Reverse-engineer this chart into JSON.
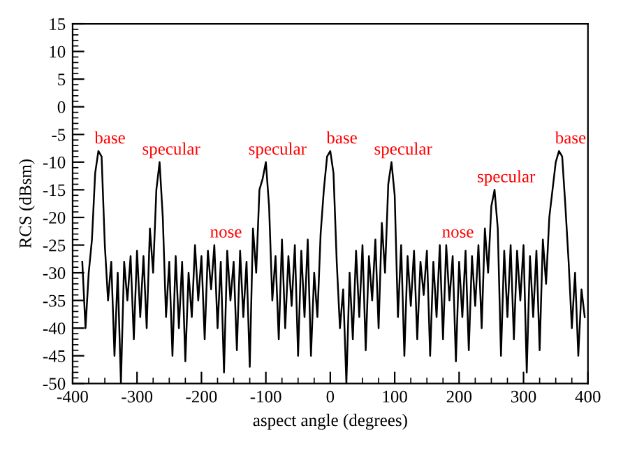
{
  "chart_data": {
    "type": "line",
    "xlabel": "aspect angle (degrees)",
    "ylabel": "RCS (dBsm)",
    "xlim": [
      -400,
      400
    ],
    "xticks": [
      -400,
      -300,
      -200,
      -100,
      0,
      100,
      200,
      300,
      400
    ],
    "ylim": [
      -50,
      15
    ],
    "yticks": [
      -50,
      -45,
      -40,
      -35,
      -30,
      -25,
      -20,
      -15,
      -10,
      -5,
      0,
      5,
      10,
      15
    ],
    "grid": false,
    "legend": false,
    "marker": "none",
    "line_style": "solid",
    "annotations": [
      {
        "text": "base",
        "x": -360,
        "y": -8
      },
      {
        "text": "specular",
        "x": -265,
        "y": -10
      },
      {
        "text": "nose",
        "x": -180,
        "y": -25
      },
      {
        "text": "specular",
        "x": -100,
        "y": -10
      },
      {
        "text": "base",
        "x": 0,
        "y": -8
      },
      {
        "text": "specular",
        "x": 95,
        "y": -10
      },
      {
        "text": "nose",
        "x": 180,
        "y": -25
      },
      {
        "text": "specular",
        "x": 255,
        "y": -15
      },
      {
        "text": "base",
        "x": 355,
        "y": -8
      }
    ],
    "series": [
      {
        "color": "#000000",
        "x": [
          -385,
          -380,
          -375,
          -370,
          -365,
          -360,
          -355,
          -350,
          -345,
          -340,
          -335,
          -330,
          -325,
          -320,
          -315,
          -310,
          -305,
          -300,
          -295,
          -290,
          -285,
          -280,
          -275,
          -270,
          -265,
          -260,
          -255,
          -250,
          -245,
          -240,
          -235,
          -230,
          -225,
          -220,
          -215,
          -210,
          -205,
          -200,
          -195,
          -190,
          -185,
          -180,
          -175,
          -170,
          -165,
          -160,
          -155,
          -150,
          -145,
          -140,
          -135,
          -130,
          -125,
          -120,
          -115,
          -110,
          -105,
          -100,
          -95,
          -90,
          -85,
          -80,
          -75,
          -70,
          -65,
          -60,
          -55,
          -50,
          -45,
          -40,
          -35,
          -30,
          -25,
          -20,
          -15,
          -10,
          -5,
          0,
          5,
          10,
          15,
          20,
          25,
          30,
          35,
          40,
          45,
          50,
          55,
          60,
          65,
          70,
          75,
          80,
          85,
          90,
          95,
          100,
          105,
          110,
          115,
          120,
          125,
          130,
          135,
          140,
          145,
          150,
          155,
          160,
          165,
          170,
          175,
          180,
          185,
          190,
          195,
          200,
          205,
          210,
          215,
          220,
          225,
          230,
          235,
          240,
          245,
          250,
          255,
          260,
          265,
          270,
          275,
          280,
          285,
          290,
          295,
          300,
          305,
          310,
          315,
          320,
          325,
          330,
          335,
          340,
          345,
          350,
          355,
          360,
          365,
          370,
          375,
          380,
          385,
          390,
          395
        ],
        "values": [
          -28,
          -40,
          -30,
          -24,
          -12,
          -8,
          -9,
          -25,
          -35,
          -28,
          -45,
          -30,
          -50,
          -28,
          -35,
          -27,
          -42,
          -26,
          -38,
          -27,
          -40,
          -22,
          -30,
          -15,
          -10,
          -20,
          -38,
          -28,
          -45,
          -27,
          -40,
          -28,
          -46,
          -30,
          -38,
          -25,
          -35,
          -27,
          -42,
          -26,
          -33,
          -25,
          -40,
          -28,
          -48,
          -26,
          -35,
          -28,
          -44,
          -26,
          -38,
          -28,
          -47,
          -22,
          -30,
          -15,
          -13,
          -10,
          -18,
          -35,
          -27,
          -42,
          -24,
          -40,
          -27,
          -36,
          -25,
          -45,
          -26,
          -38,
          -24,
          -45,
          -30,
          -38,
          -23,
          -15,
          -9,
          -8,
          -12,
          -28,
          -40,
          -33,
          -50,
          -30,
          -42,
          -26,
          -38,
          -25,
          -44,
          -27,
          -35,
          -24,
          -40,
          -21,
          -30,
          -14,
          -10,
          -16,
          -38,
          -25,
          -45,
          -27,
          -36,
          -26,
          -42,
          -28,
          -34,
          -26,
          -45,
          -28,
          -38,
          -25,
          -42,
          -25,
          -35,
          -27,
          -46,
          -28,
          -38,
          -26,
          -44,
          -27,
          -36,
          -25,
          -40,
          -22,
          -30,
          -18,
          -15,
          -22,
          -45,
          -26,
          -38,
          -25,
          -42,
          -26,
          -35,
          -25,
          -48,
          -27,
          -38,
          -26,
          -44,
          -24,
          -32,
          -20,
          -15,
          -10,
          -8,
          -9,
          -18,
          -28,
          -40,
          -30,
          -45,
          -33,
          -38
        ]
      }
    ]
  }
}
